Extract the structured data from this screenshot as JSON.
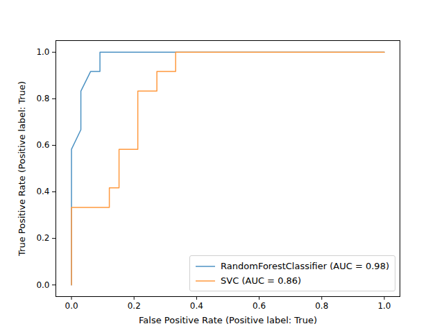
{
  "chart_data": {
    "type": "line",
    "xlabel": "False Positive Rate (Positive label: True)",
    "ylabel": "True Positive Rate (Positive label: True)",
    "xlim": [
      -0.05,
      1.05
    ],
    "ylim": [
      -0.05,
      1.05
    ],
    "xticks": [
      {
        "value": 0,
        "label": "0.0"
      },
      {
        "value": 0.2,
        "label": "0.2"
      },
      {
        "value": 0.4,
        "label": "0.4"
      },
      {
        "value": 0.6,
        "label": "0.6"
      },
      {
        "value": 0.8,
        "label": "0.8"
      },
      {
        "value": 1,
        "label": "1.0"
      }
    ],
    "yticks": [
      {
        "value": 0,
        "label": "0.0"
      },
      {
        "value": 0.2,
        "label": "0.2"
      },
      {
        "value": 0.4,
        "label": "0.4"
      },
      {
        "value": 0.6,
        "label": "0.6"
      },
      {
        "value": 0.8,
        "label": "0.8"
      },
      {
        "value": 1,
        "label": "1.0"
      }
    ],
    "grid": false,
    "legend": "lower right",
    "series": [
      {
        "name": "RandomForestClassifier (AUC = 0.98)",
        "color": "#4c92c3",
        "x": [
          0,
          0,
          0.03,
          0.03,
          0.061,
          0.091,
          0.091,
          1
        ],
        "values": [
          0,
          0.583,
          0.667,
          0.833,
          0.917,
          0.917,
          1,
          1
        ]
      },
      {
        "name": "SVC (AUC = 0.86)",
        "color": "#ff993e",
        "x": [
          0,
          0,
          0.121,
          0.121,
          0.152,
          0.152,
          0.212,
          0.212,
          0.273,
          0.273,
          0.333,
          0.333,
          1
        ],
        "values": [
          0,
          0.333,
          0.333,
          0.417,
          0.417,
          0.583,
          0.583,
          0.833,
          0.833,
          0.917,
          0.917,
          1,
          1
        ]
      }
    ]
  }
}
